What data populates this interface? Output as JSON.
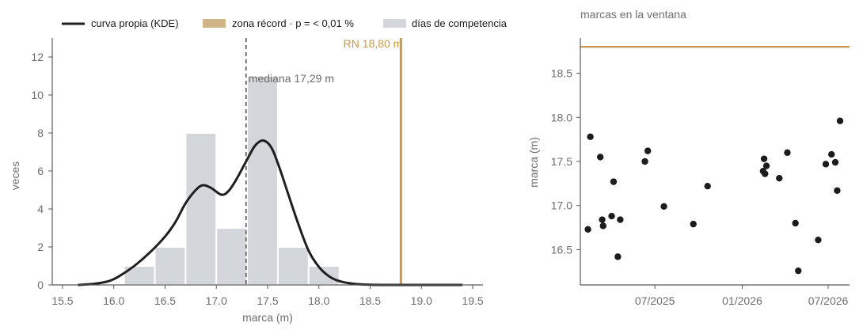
{
  "legend": [
    {
      "label": "curva propia (KDE)",
      "kind": "line",
      "color": "#1f1f1f"
    },
    {
      "label": "zona récord · p = < 0,01 %",
      "kind": "patch",
      "color": "#cfb487"
    },
    {
      "label": "días de competencia",
      "kind": "patch",
      "color": "#d3d6da"
    }
  ],
  "chart_data": [
    {
      "type": "bar",
      "subtype": "histogram-with-kde",
      "title": "",
      "xlabel": "marca (m)",
      "ylabel": "veces",
      "xlim": [
        15.4,
        19.6
      ],
      "ylim": [
        0,
        13
      ],
      "xticks": [
        "15.5",
        "16.0",
        "16.5",
        "17.0",
        "17.5",
        "18.0",
        "18.5",
        "19.0",
        "19.5"
      ],
      "yticks": [
        "0",
        "2",
        "4",
        "6",
        "8",
        "10",
        "12"
      ],
      "bins": [
        {
          "start": 16.1,
          "end": 16.4,
          "value": 1
        },
        {
          "start": 16.4,
          "end": 16.7,
          "value": 2
        },
        {
          "start": 16.7,
          "end": 17.0,
          "value": 8
        },
        {
          "start": 17.0,
          "end": 17.3,
          "value": 3
        },
        {
          "start": 17.3,
          "end": 17.6,
          "value": 11
        },
        {
          "start": 17.6,
          "end": 17.9,
          "value": 2
        },
        {
          "start": 17.9,
          "end": 18.2,
          "value": 1
        }
      ],
      "kde": {
        "name": "curva propia (KDE)",
        "x": [
          15.65,
          15.8,
          15.95,
          16.05,
          16.2,
          16.35,
          16.5,
          16.6,
          16.7,
          16.8,
          16.87,
          16.95,
          17.05,
          17.12,
          17.2,
          17.3,
          17.38,
          17.46,
          17.54,
          17.62,
          17.7,
          17.8,
          17.9,
          18.0,
          18.1,
          18.2,
          18.35,
          18.5,
          18.7,
          18.9,
          19.2,
          19.4
        ],
        "y": [
          0.0,
          0.05,
          0.2,
          0.45,
          1.0,
          1.7,
          2.55,
          3.3,
          4.3,
          5.0,
          5.25,
          5.1,
          4.75,
          4.95,
          5.6,
          6.6,
          7.35,
          7.6,
          7.2,
          6.1,
          4.8,
          3.2,
          1.8,
          0.95,
          0.45,
          0.2,
          0.05,
          0.01,
          0.0,
          0.0,
          0.0,
          0.0
        ],
        "color": "#1f1f1f"
      },
      "median": {
        "value": 17.29,
        "label": "mediana 17,29 m"
      },
      "record": {
        "value": 18.8,
        "label": "RN 18,80 m",
        "color": "#c99a48"
      }
    },
    {
      "type": "scatter",
      "title": "marcas en la ventana",
      "xlabel": "",
      "ylabel": "marca (m)",
      "xlim": [
        "2025-01-25",
        "2026-08-15"
      ],
      "ylim": [
        16.1,
        18.9
      ],
      "xticks": [
        {
          "value": "2025-07-01",
          "label": "07/2025"
        },
        {
          "value": "2026-01-01",
          "label": "01/2026"
        },
        {
          "value": "2026-07-01",
          "label": "07/2026"
        }
      ],
      "yticks": [
        "16.5",
        "17.0",
        "17.5",
        "18.0",
        "18.5"
      ],
      "record_line": 18.8,
      "points": [
        {
          "x": "2025-02-10",
          "y": 16.73
        },
        {
          "x": "2025-02-15",
          "y": 17.78
        },
        {
          "x": "2025-03-08",
          "y": 17.55
        },
        {
          "x": "2025-03-12",
          "y": 16.84
        },
        {
          "x": "2025-03-14",
          "y": 16.77
        },
        {
          "x": "2025-04-01",
          "y": 16.88
        },
        {
          "x": "2025-04-05",
          "y": 17.27
        },
        {
          "x": "2025-04-14",
          "y": 16.42
        },
        {
          "x": "2025-04-19",
          "y": 16.84
        },
        {
          "x": "2025-06-10",
          "y": 17.5
        },
        {
          "x": "2025-06-16",
          "y": 17.62
        },
        {
          "x": "2025-07-20",
          "y": 16.99
        },
        {
          "x": "2025-09-20",
          "y": 16.79
        },
        {
          "x": "2025-10-20",
          "y": 17.22
        },
        {
          "x": "2026-02-14",
          "y": 17.39
        },
        {
          "x": "2026-02-16",
          "y": 17.53
        },
        {
          "x": "2026-02-18",
          "y": 17.36
        },
        {
          "x": "2026-02-21",
          "y": 17.45
        },
        {
          "x": "2026-03-20",
          "y": 17.31
        },
        {
          "x": "2026-04-06",
          "y": 17.6
        },
        {
          "x": "2026-04-23",
          "y": 16.8
        },
        {
          "x": "2026-04-29",
          "y": 16.26
        },
        {
          "x": "2026-06-10",
          "y": 16.61
        },
        {
          "x": "2026-06-26",
          "y": 17.47
        },
        {
          "x": "2026-07-08",
          "y": 17.58
        },
        {
          "x": "2026-07-16",
          "y": 17.49
        },
        {
          "x": "2026-07-20",
          "y": 17.17
        },
        {
          "x": "2026-07-26",
          "y": 17.96
        }
      ],
      "point_color": "#1c1c1c",
      "line_color": "#c99a48"
    }
  ]
}
